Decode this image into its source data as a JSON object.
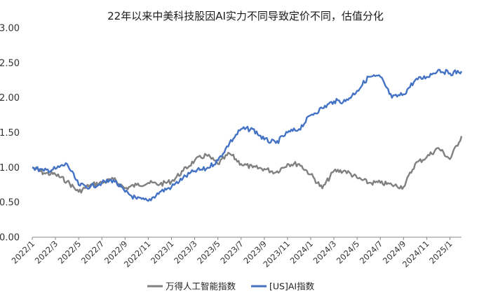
{
  "chart_data": {
    "type": "line",
    "title": "22年以来中美科技股因AI实力不同导致定价不同，估值分化",
    "xlabel": "",
    "ylabel": "",
    "ylim": [
      0,
      3
    ],
    "yticks": [
      "3.00",
      "2.50",
      "2.00",
      "1.50",
      "1.00",
      "0.50",
      "0.00"
    ],
    "x_tick_labels": [
      "2022/1",
      "2022/3",
      "2022/5",
      "2022/7",
      "2022/9",
      "2022/11",
      "2023/1",
      "2023/3",
      "2023/5",
      "2023/7",
      "2023/9",
      "2023/11",
      "2024/1",
      "2024/3",
      "2024/5",
      "2024/7",
      "2024/9",
      "2024/11",
      "2025/1"
    ],
    "x_range": [
      "2022/1",
      "2025/2"
    ],
    "grid": false,
    "legend_position": "bottom",
    "series": [
      {
        "name": "万得人工智能指数",
        "color": "#808080",
        "x": [
          "2022/1",
          "2022/2",
          "2022/3",
          "2022/4",
          "2022/5",
          "2022/6",
          "2022/7",
          "2022/8",
          "2022/9",
          "2022/10",
          "2022/11",
          "2022/12",
          "2023/1",
          "2023/2",
          "2023/3",
          "2023/4",
          "2023/5",
          "2023/6",
          "2023/7",
          "2023/8",
          "2023/9",
          "2023/10",
          "2023/11",
          "2023/12",
          "2024/1",
          "2024/2",
          "2024/3",
          "2024/4",
          "2024/5",
          "2024/6",
          "2024/7",
          "2024/8",
          "2024/9",
          "2024/10",
          "2024/11",
          "2024/12",
          "2025/1",
          "2025/2"
        ],
        "values": [
          1.0,
          0.92,
          0.9,
          0.8,
          0.65,
          0.75,
          0.78,
          0.83,
          0.7,
          0.75,
          0.78,
          0.76,
          0.8,
          0.95,
          1.1,
          1.18,
          1.05,
          1.2,
          1.05,
          1.0,
          0.98,
          0.93,
          1.05,
          1.05,
          0.9,
          0.7,
          0.95,
          0.95,
          0.85,
          0.78,
          0.78,
          0.75,
          0.72,
          1.05,
          1.15,
          1.28,
          1.12,
          1.45
        ]
      },
      {
        "name": "[US]AI指数",
        "color": "#4472C4",
        "x": [
          "2022/1",
          "2022/2",
          "2022/3",
          "2022/4",
          "2022/5",
          "2022/6",
          "2022/7",
          "2022/8",
          "2022/9",
          "2022/10",
          "2022/11",
          "2022/12",
          "2023/1",
          "2023/2",
          "2023/3",
          "2023/4",
          "2023/5",
          "2023/6",
          "2023/7",
          "2023/8",
          "2023/9",
          "2023/10",
          "2023/11",
          "2023/12",
          "2024/1",
          "2024/2",
          "2024/3",
          "2024/4",
          "2024/5",
          "2024/6",
          "2024/7",
          "2024/8",
          "2024/9",
          "2024/10",
          "2024/11",
          "2024/12",
          "2025/1",
          "2025/2"
        ],
        "values": [
          1.0,
          0.95,
          0.98,
          1.05,
          0.75,
          0.72,
          0.78,
          0.82,
          0.65,
          0.55,
          0.52,
          0.65,
          0.72,
          0.85,
          0.95,
          0.98,
          1.1,
          1.35,
          1.55,
          1.55,
          1.4,
          1.35,
          1.5,
          1.55,
          1.75,
          1.85,
          1.95,
          1.95,
          2.1,
          2.3,
          2.3,
          2.0,
          2.05,
          2.25,
          2.3,
          2.4,
          2.35,
          2.38
        ]
      }
    ]
  }
}
